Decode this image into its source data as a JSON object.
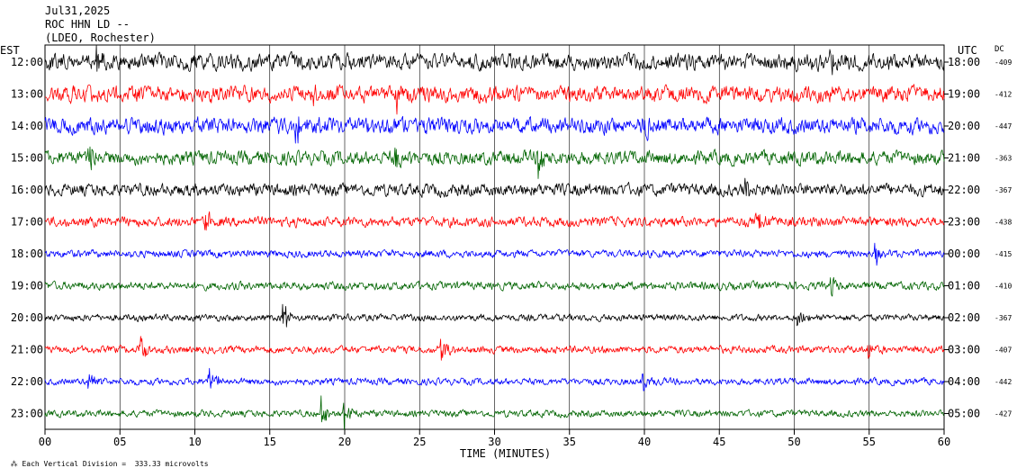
{
  "header": {
    "date": "Jul31,2025",
    "channel": "ROC HHN LD --",
    "network": "(LDEO, Rochester)"
  },
  "axes": {
    "left_label": "EST",
    "right_label": "UTC",
    "dc_label": "DC",
    "xlabel": "TIME (MINUTES)"
  },
  "footer": {
    "scale_text": "Each Vertical Division =  333.33 microvolts"
  },
  "colors": {
    "trace_cycle": [
      "#000000",
      "#ff0000",
      "#0000ff",
      "#006400"
    ],
    "grid": "#000000"
  },
  "chart_data": {
    "type": "line",
    "subtype": "helicorder seismogram",
    "xlabel": "TIME (MINUTES)",
    "xlim": [
      0,
      60
    ],
    "x_ticks": [
      "00",
      "05",
      "10",
      "15",
      "20",
      "25",
      "30",
      "35",
      "40",
      "45",
      "50",
      "55",
      "60"
    ],
    "grid": "vertical lines every 5 minutes",
    "rows": [
      {
        "est": "12:00",
        "utc": "18:00",
        "dc": "-409",
        "color": "#000000",
        "amplitude": 1.3,
        "events": [
          {
            "minute": 3.5,
            "size": 2.5
          },
          {
            "minute": 52.5,
            "size": 2.0
          }
        ]
      },
      {
        "est": "13:00",
        "utc": "19:00",
        "dc": "-412",
        "color": "#ff0000",
        "amplitude": 1.3,
        "events": [
          {
            "minute": 18.0,
            "size": 1.8
          },
          {
            "minute": 23.5,
            "size": 1.8
          }
        ]
      },
      {
        "est": "14:00",
        "utc": "20:00",
        "dc": "-447",
        "color": "#0000ff",
        "amplitude": 1.3,
        "events": [
          {
            "minute": 16.8,
            "size": 2.0
          },
          {
            "minute": 40.0,
            "size": 1.6
          }
        ]
      },
      {
        "est": "15:00",
        "utc": "21:00",
        "dc": "-363",
        "color": "#006400",
        "amplitude": 1.1,
        "events": [
          {
            "minute": 3.0,
            "size": 2.2
          },
          {
            "minute": 23.5,
            "size": 2.2
          },
          {
            "minute": 33.0,
            "size": 2.6
          }
        ]
      },
      {
        "est": "16:00",
        "utc": "22:00",
        "dc": "-367",
        "color": "#000000",
        "amplitude": 1.0,
        "events": [
          {
            "minute": 46.8,
            "size": 1.8
          }
        ]
      },
      {
        "est": "17:00",
        "utc": "23:00",
        "dc": "-438",
        "color": "#ff0000",
        "amplitude": 0.8,
        "events": [
          {
            "minute": 10.8,
            "size": 1.5
          },
          {
            "minute": 47.5,
            "size": 1.5
          }
        ]
      },
      {
        "est": "18:00",
        "utc": "00:00",
        "dc": "-415",
        "color": "#0000ff",
        "amplitude": 0.6,
        "events": [
          {
            "minute": 55.5,
            "size": 1.4
          }
        ]
      },
      {
        "est": "19:00",
        "utc": "01:00",
        "dc": "-410",
        "color": "#006400",
        "amplitude": 0.65,
        "events": [
          {
            "minute": 52.5,
            "size": 1.5
          }
        ]
      },
      {
        "est": "20:00",
        "utc": "02:00",
        "dc": "-367",
        "color": "#000000",
        "amplitude": 0.55,
        "events": [
          {
            "minute": 16.0,
            "size": 2.0
          },
          {
            "minute": 50.3,
            "size": 1.6
          }
        ]
      },
      {
        "est": "21:00",
        "utc": "03:00",
        "dc": "-407",
        "color": "#ff0000",
        "amplitude": 0.6,
        "events": [
          {
            "minute": 6.4,
            "size": 2.0
          },
          {
            "minute": 26.5,
            "size": 1.8
          },
          {
            "minute": 55.0,
            "size": 1.3
          }
        ]
      },
      {
        "est": "22:00",
        "utc": "04:00",
        "dc": "-442",
        "color": "#0000ff",
        "amplitude": 0.55,
        "events": [
          {
            "minute": 3.0,
            "size": 1.4
          },
          {
            "minute": 11.0,
            "size": 2.0
          },
          {
            "minute": 40.0,
            "size": 1.4
          }
        ]
      },
      {
        "est": "23:00",
        "utc": "05:00",
        "dc": "-427",
        "color": "#006400",
        "amplitude": 0.55,
        "events": [
          {
            "minute": 18.5,
            "size": 2.4
          },
          {
            "minute": 20.0,
            "size": 2.0
          }
        ]
      }
    ]
  }
}
